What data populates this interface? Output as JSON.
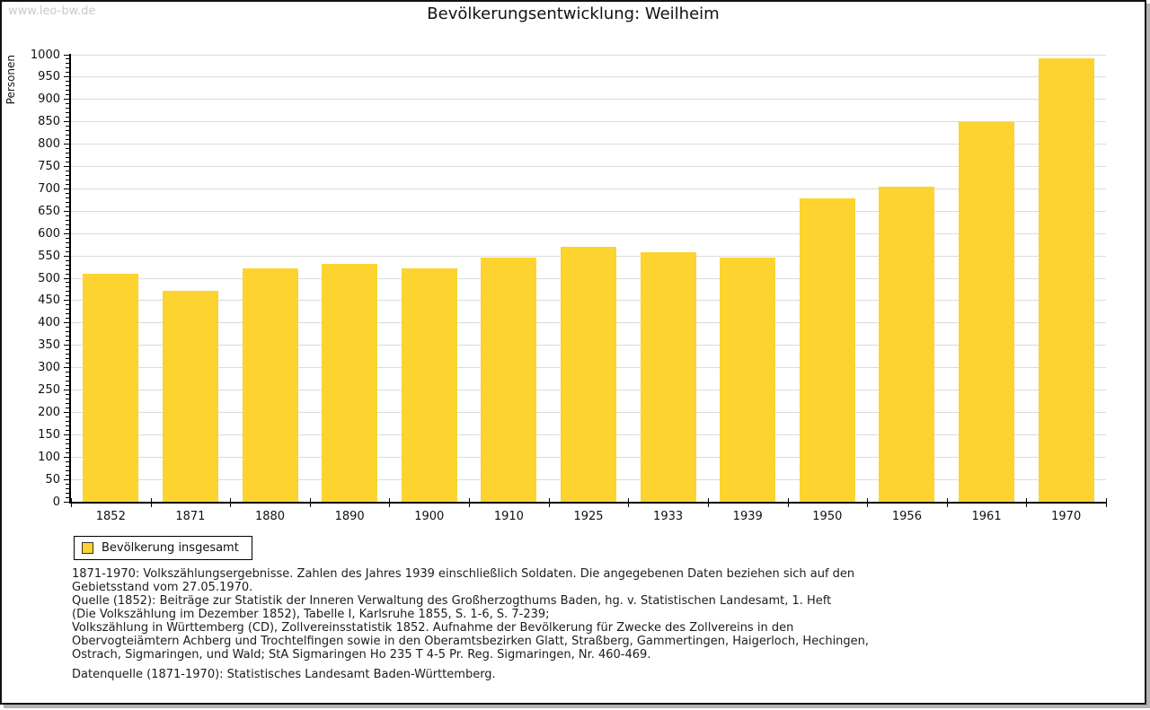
{
  "watermark": "www.leo-bw.de",
  "legend": {
    "label": "Bevölkerung insgesamt"
  },
  "colors": {
    "bar": "#fcd32f",
    "grid": "#dbdbdb",
    "axis": "#000000",
    "watermark": "#c9c9c9",
    "frame_shadow": "#b3b3b3"
  },
  "chart_data": {
    "type": "bar",
    "title": "Bevölkerungsentwicklung: Weilheim",
    "ylabel": "Personen",
    "xlabel": "",
    "categories": [
      "1852",
      "1871",
      "1880",
      "1890",
      "1900",
      "1910",
      "1925",
      "1933",
      "1939",
      "1950",
      "1956",
      "1961",
      "1970"
    ],
    "series": [
      {
        "name": "Bevölkerung insgesamt",
        "values": [
          510,
          472,
          522,
          532,
          522,
          546,
          571,
          559,
          547,
          678,
          705,
          850,
          993
        ]
      }
    ],
    "ylim": [
      0,
      1000
    ],
    "ytick_step": 50,
    "yminor_step": 10,
    "grid": true,
    "legend_position": "bottom-left"
  },
  "footnotes": {
    "lines": [
      "1871-1970: Volkszählungsergebnisse. Zahlen des Jahres 1939 einschließlich Soldaten. Die angegebenen Daten beziehen sich auf den",
      "Gebietsstand vom 27.05.1970.",
      "Quelle (1852): Beiträge zur Statistik der Inneren Verwaltung des Großherzogthums Baden, hg. v. Statistischen Landesamt, 1. Heft",
      "(Die Volkszählung im Dezember 1852), Tabelle I, Karlsruhe 1855, S. 1-6, S. 7-239;",
      "Volkszählung in Württemberg (CD), Zollvereinsstatistik 1852. Aufnahme der Bevölkerung für Zwecke des Zollvereins in den",
      "Obervogteiämtern Achberg und Trochtelfingen sowie in den Oberamtsbezirken Glatt, Straßberg, Gammertingen, Haigerloch, Hechingen,",
      "Ostrach, Sigmaringen, und Wald; StA Sigmaringen Ho 235 T 4-5 Pr. Reg. Sigmaringen, Nr. 460-469.",
      "Datenquelle (1871-1970): Statistisches Landesamt Baden-Württemberg."
    ]
  }
}
